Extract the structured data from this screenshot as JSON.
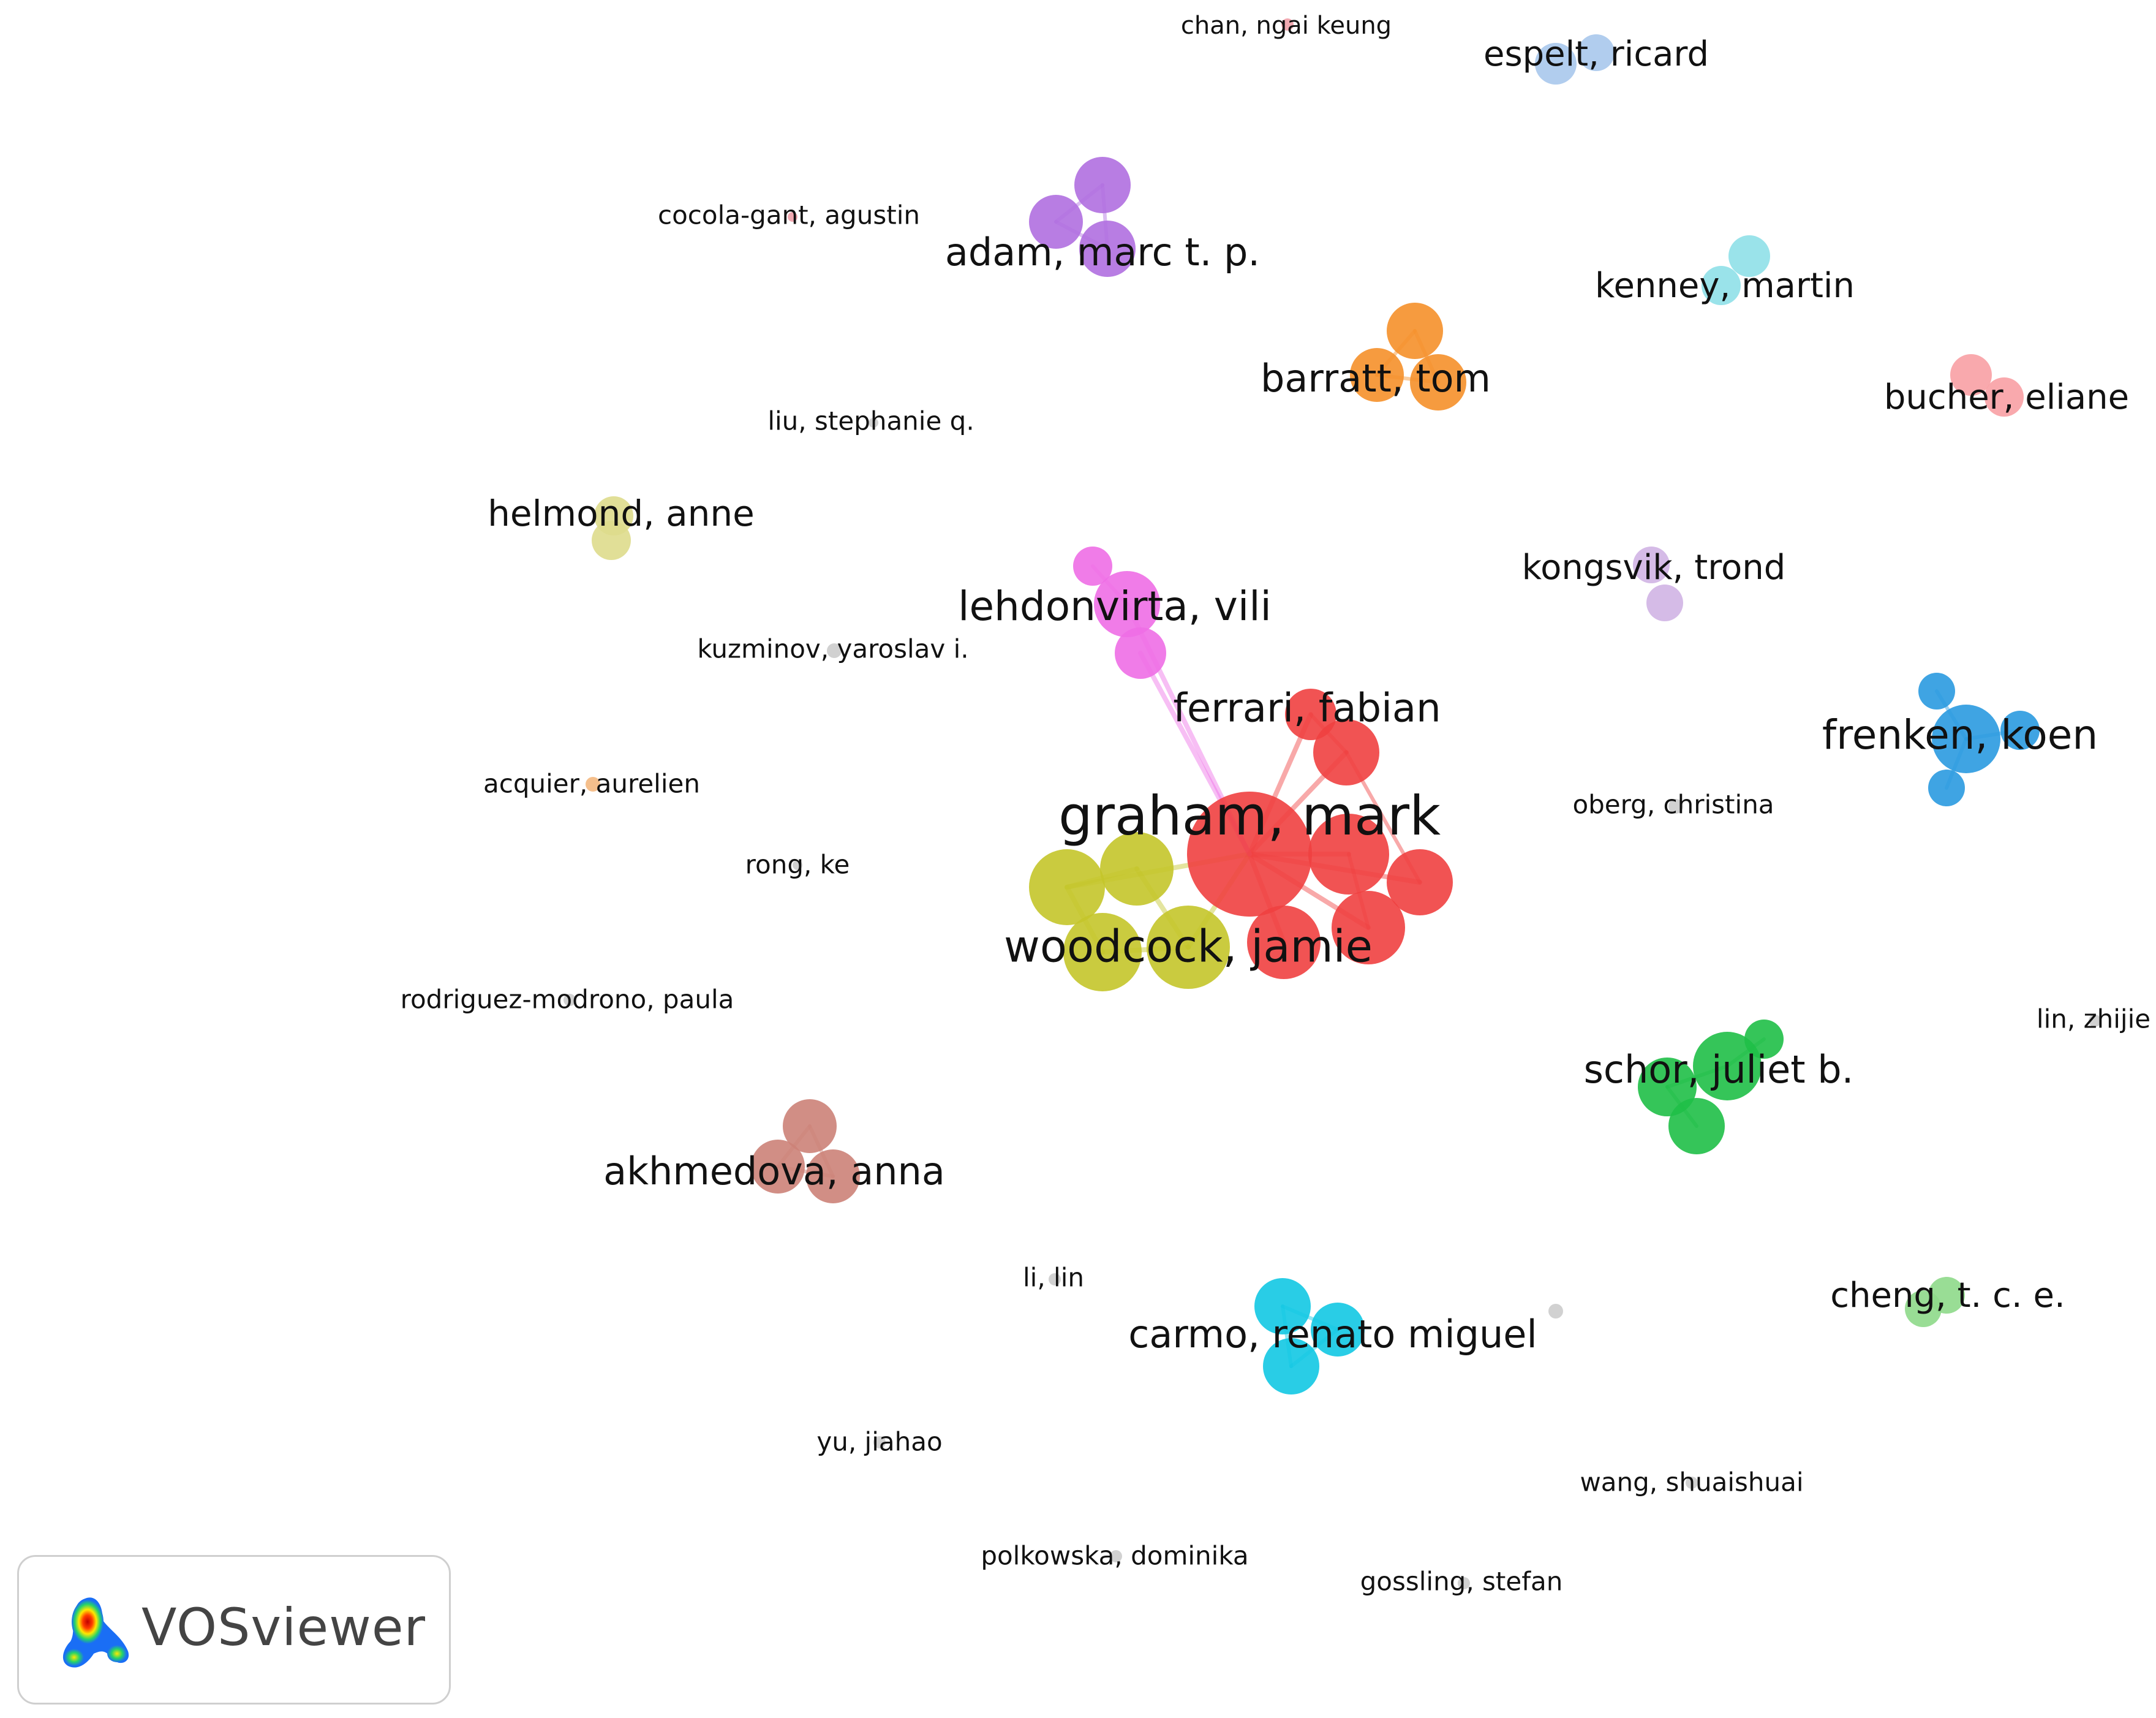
{
  "network": {
    "colors": {
      "red": "#f04040",
      "olive": "#c4c52a",
      "pink": "#ee6ee6",
      "purple": "#b06fe0",
      "orange": "#f5902a",
      "lightblue": "#a9c8ec",
      "cyan_light": "#8fe0e8",
      "salmon": "#f8a0a4",
      "lightyellow": "#dedc8c",
      "lavender": "#d0b4e4",
      "blue": "#2a9ae0",
      "green": "#1fbf47",
      "brown": "#cc8278",
      "cyan": "#12c8e3",
      "lightgreen": "#8ed98a",
      "grey": "#cccccc",
      "peach": "#f4b880",
      "rose": "#f0a0a8"
    },
    "nodes": [
      {
        "id": "graham",
        "label": "graham, mark",
        "color": "red"
      },
      {
        "id": "ferrari",
        "label": "ferrari, fabian",
        "color": "red"
      },
      {
        "id": "woodcock",
        "label": "woodcock, jamie",
        "color": "olive"
      },
      {
        "id": "lehdonvirta",
        "label": "lehdonvirta, vili",
        "color": "pink"
      },
      {
        "id": "adam",
        "label": "adam, marc t. p.",
        "color": "purple"
      },
      {
        "id": "barratt",
        "label": "barratt, tom",
        "color": "orange"
      },
      {
        "id": "espelt",
        "label": "espelt, ricard",
        "color": "lightblue"
      },
      {
        "id": "kenney",
        "label": "kenney, martin",
        "color": "cyan_light"
      },
      {
        "id": "bucher",
        "label": "bucher, eliane",
        "color": "salmon"
      },
      {
        "id": "helmond",
        "label": "helmond, anne",
        "color": "lightyellow"
      },
      {
        "id": "kongsvik",
        "label": "kongsvik, trond",
        "color": "lavender"
      },
      {
        "id": "frenken",
        "label": "frenken, koen",
        "color": "blue"
      },
      {
        "id": "schor",
        "label": "schor, juliet b.",
        "color": "green"
      },
      {
        "id": "akhmedova",
        "label": "akhmedova, anna",
        "color": "brown"
      },
      {
        "id": "carmo",
        "label": "carmo, renato miguel",
        "color": "cyan"
      },
      {
        "id": "cheng",
        "label": "cheng, t. c. e.",
        "color": "lightgreen"
      },
      {
        "id": "chan",
        "label": "chan, ngai keung",
        "color": "rose"
      },
      {
        "id": "cocola",
        "label": "cocola-gant, agustin",
        "color": "rose"
      },
      {
        "id": "liu",
        "label": "liu, stephanie q.",
        "color": "grey"
      },
      {
        "id": "kuzminov",
        "label": "kuzminov, yaroslav i.",
        "color": "grey"
      },
      {
        "id": "acquier",
        "label": "acquier, aurelien",
        "color": "peach"
      },
      {
        "id": "rong",
        "label": "rong, ke",
        "color": "grey"
      },
      {
        "id": "oberg",
        "label": "oberg, christina",
        "color": "grey"
      },
      {
        "id": "rodriguez",
        "label": "rodriguez-modrono, paula",
        "color": "grey"
      },
      {
        "id": "lin",
        "label": "lin, zhijie",
        "color": "grey"
      },
      {
        "id": "lilin",
        "label": "li, lin",
        "color": "grey"
      },
      {
        "id": "yu",
        "label": "yu, jiahao",
        "color": "grey"
      },
      {
        "id": "wang",
        "label": "wang, shuaishuai",
        "color": "grey"
      },
      {
        "id": "polkowska",
        "label": "polkowska, dominika",
        "color": "grey"
      },
      {
        "id": "gossling",
        "label": "gossling, stefan",
        "color": "grey"
      }
    ]
  },
  "logo": {
    "text": "VOSviewer"
  }
}
